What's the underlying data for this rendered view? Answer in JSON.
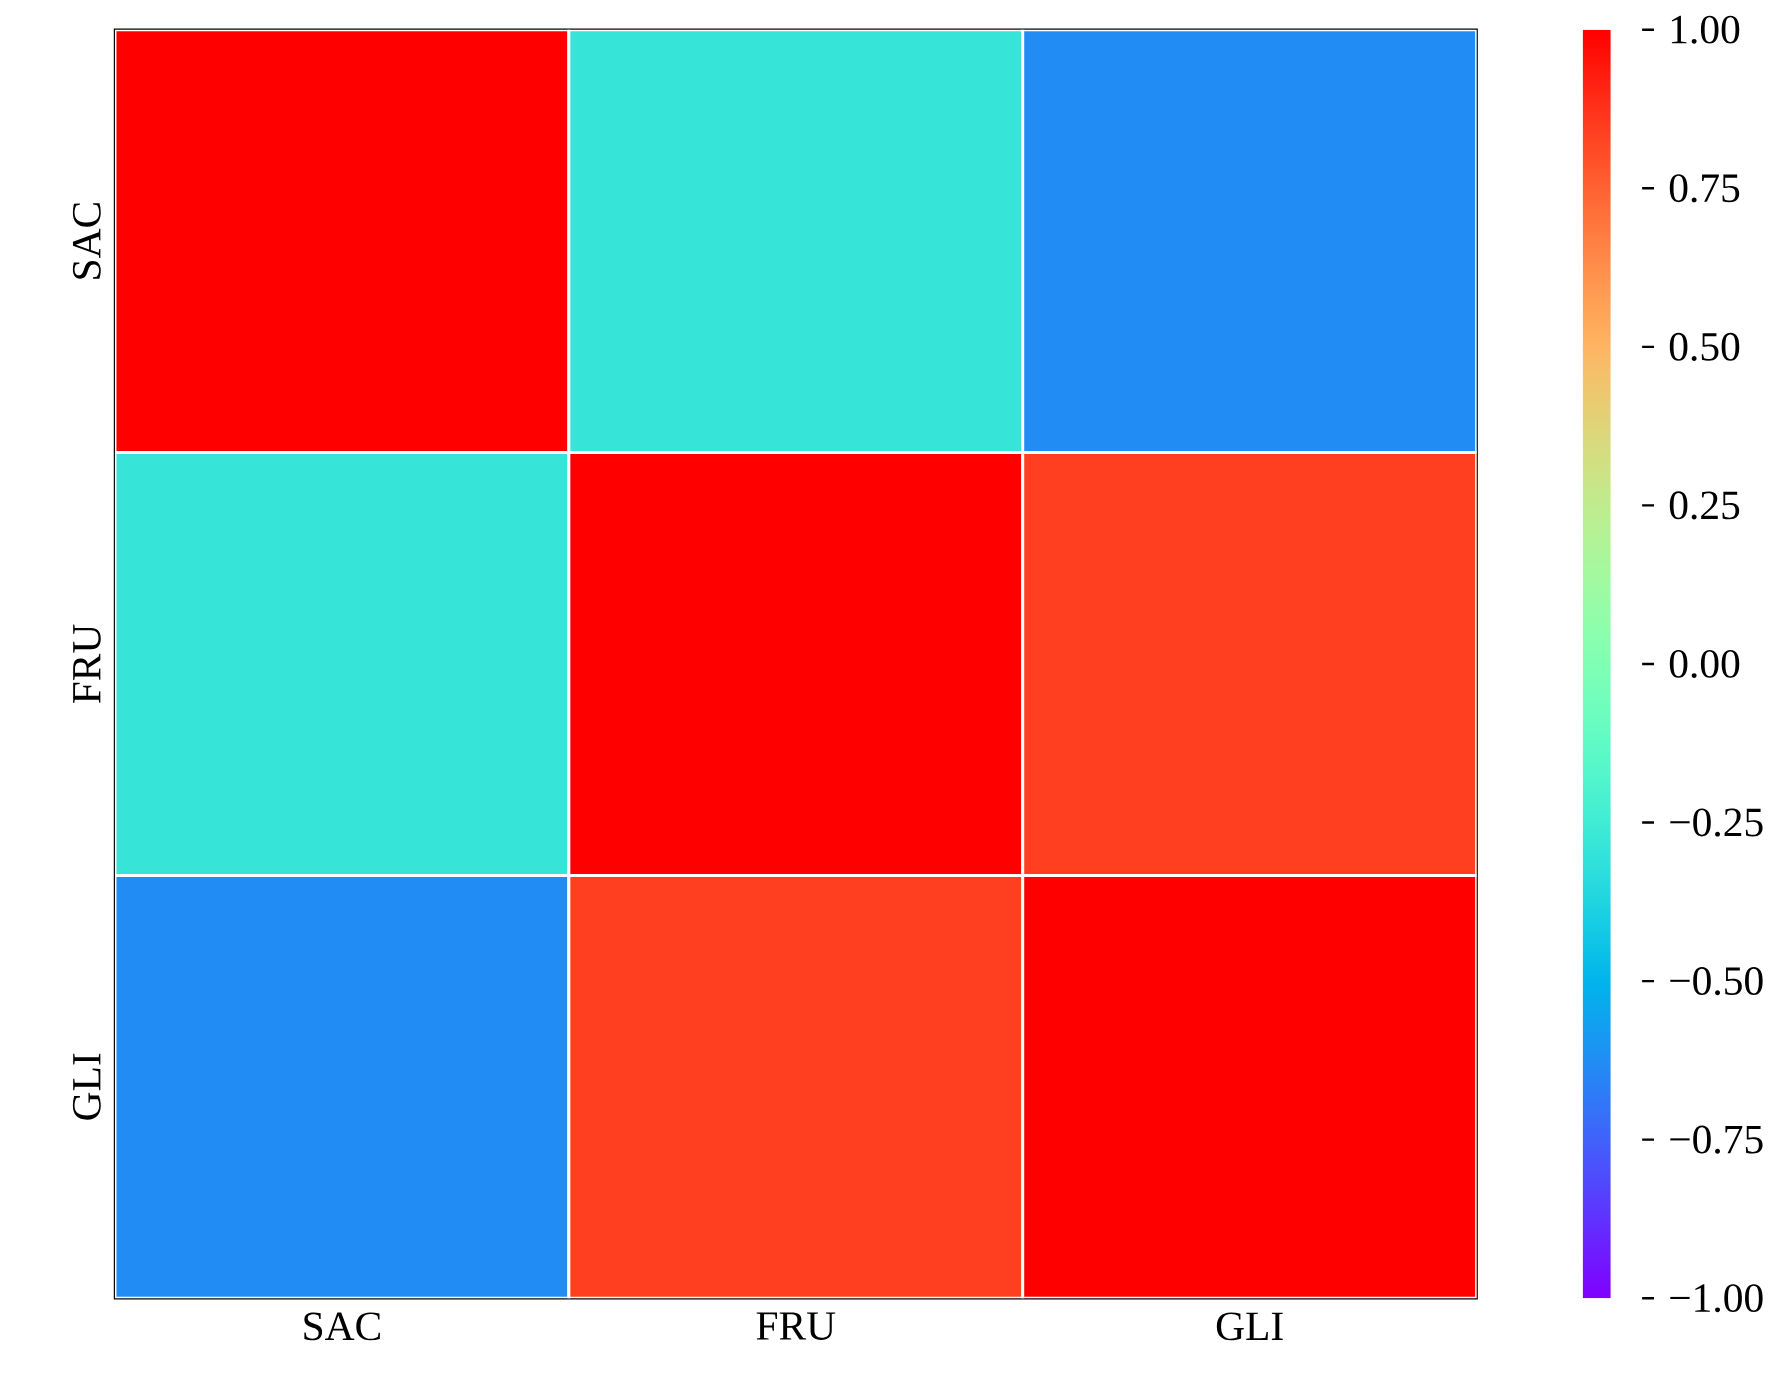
{
  "chart_data": {
    "type": "heatmap",
    "categories": [
      "SAC",
      "FRU",
      "GLI"
    ],
    "y_categories": [
      "SAC",
      "FRU",
      "GLI"
    ],
    "cells": [
      [
        1.0,
        -0.29,
        -0.63
      ],
      [
        -0.29,
        1.0,
        0.84
      ],
      [
        -0.63,
        0.84,
        1.0
      ]
    ],
    "clim": [
      -1.0,
      1.0
    ],
    "cticks": [
      {
        "value": -1.0,
        "label": "−1.00"
      },
      {
        "value": -0.75,
        "label": "−0.75"
      },
      {
        "value": -0.5,
        "label": "−0.50"
      },
      {
        "value": -0.25,
        "label": "−0.25"
      },
      {
        "value": 0.0,
        "label": "0.00"
      },
      {
        "value": 0.25,
        "label": "0.25"
      },
      {
        "value": 0.5,
        "label": "0.50"
      },
      {
        "value": 0.75,
        "label": "0.75"
      },
      {
        "value": 1.0,
        "label": "1.00"
      }
    ]
  }
}
